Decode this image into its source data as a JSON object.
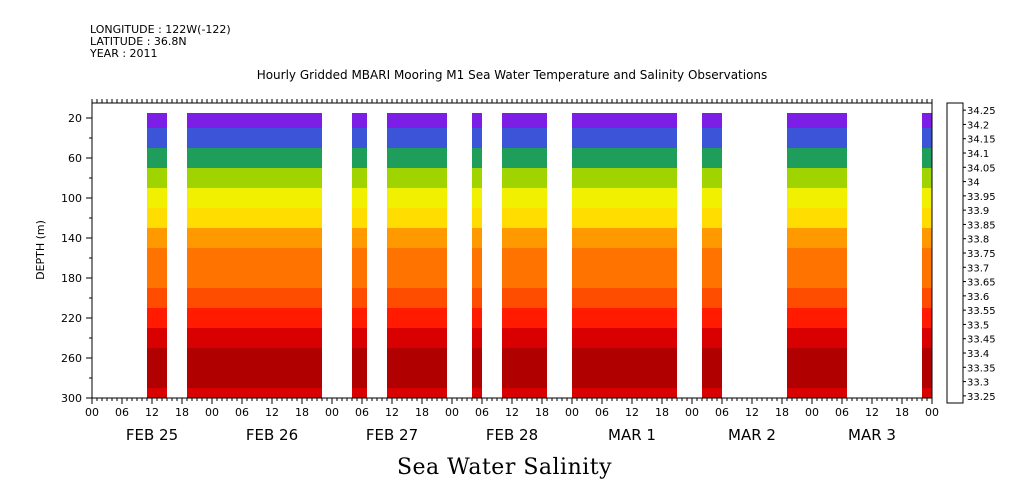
{
  "header": {
    "longitude": "LONGITUDE : 122W(-122)",
    "latitude": "LATITUDE : 36.8N",
    "year": "YEAR : 2011"
  },
  "chart_data": {
    "type": "heatmap",
    "title": "Hourly Gridded MBARI Mooring M1 Sea Water Temperature and Salinity Observations",
    "bottom_title": "Sea Water Salinity",
    "ylabel": "DEPTH (m)",
    "ylim": [
      300,
      5
    ],
    "y_ticks": [
      20,
      60,
      100,
      140,
      180,
      220,
      260,
      300
    ],
    "x_hour_ticks": [
      "00",
      "06",
      "12",
      "18",
      "00",
      "06",
      "12",
      "18",
      "00",
      "06",
      "12",
      "18",
      "00",
      "06",
      "12",
      "18",
      "00",
      "06",
      "12",
      "18",
      "00",
      "06",
      "12",
      "18",
      "00",
      "06",
      "12",
      "18",
      "00"
    ],
    "x_day_labels": [
      "FEB 25",
      "FEB 26",
      "FEB 27",
      "FEB 28",
      "MAR  1",
      "MAR  2",
      "MAR  3"
    ],
    "x_range_hours": [
      0,
      168
    ],
    "data_segments_hours": [
      [
        11,
        15
      ],
      [
        19,
        46
      ],
      [
        52,
        55
      ],
      [
        59,
        71
      ],
      [
        76,
        78
      ],
      [
        82,
        91
      ],
      [
        96,
        117
      ],
      [
        122,
        126
      ],
      [
        139,
        151
      ],
      [
        166,
        168
      ]
    ],
    "colorbar": {
      "levels": [
        "34.25",
        "34.2",
        "34.15",
        "34.1",
        "34.05",
        "34",
        "33.95",
        "33.9",
        "33.85",
        "33.8",
        "33.75",
        "33.7",
        "33.65",
        "33.6",
        "33.55",
        "33.5",
        "33.45",
        "33.4",
        "33.35",
        "33.3",
        "33.25"
      ],
      "colors": [
        "#8b0000",
        "#b00000",
        "#d80000",
        "#ff1a00",
        "#ff4d00",
        "#ff7300",
        "#ff9900",
        "#ffbb00",
        "#ffdd00",
        "#f0f000",
        "#c8e600",
        "#9fd400",
        "#6cc22a",
        "#3cb043",
        "#1e9e5a",
        "#1e8a8a",
        "#2e6fb4",
        "#3c55d8",
        "#4a32e6",
        "#7c1ee6",
        "#c000ff"
      ]
    },
    "salinity_profile_by_depth": [
      {
        "depth": 20,
        "value": 33.3
      },
      {
        "depth": 40,
        "value": 33.4
      },
      {
        "depth": 60,
        "value": 33.55
      },
      {
        "depth": 80,
        "value": 33.72
      },
      {
        "depth": 100,
        "value": 33.8
      },
      {
        "depth": 120,
        "value": 33.88
      },
      {
        "depth": 140,
        "value": 33.97
      },
      {
        "depth": 160,
        "value": 34.02
      },
      {
        "depth": 180,
        "value": 34.04
      },
      {
        "depth": 200,
        "value": 34.05
      },
      {
        "depth": 220,
        "value": 34.1
      },
      {
        "depth": 240,
        "value": 34.17
      },
      {
        "depth": 260,
        "value": 34.22
      },
      {
        "depth": 280,
        "value": 34.2
      },
      {
        "depth": 300,
        "value": 34.17
      }
    ]
  }
}
